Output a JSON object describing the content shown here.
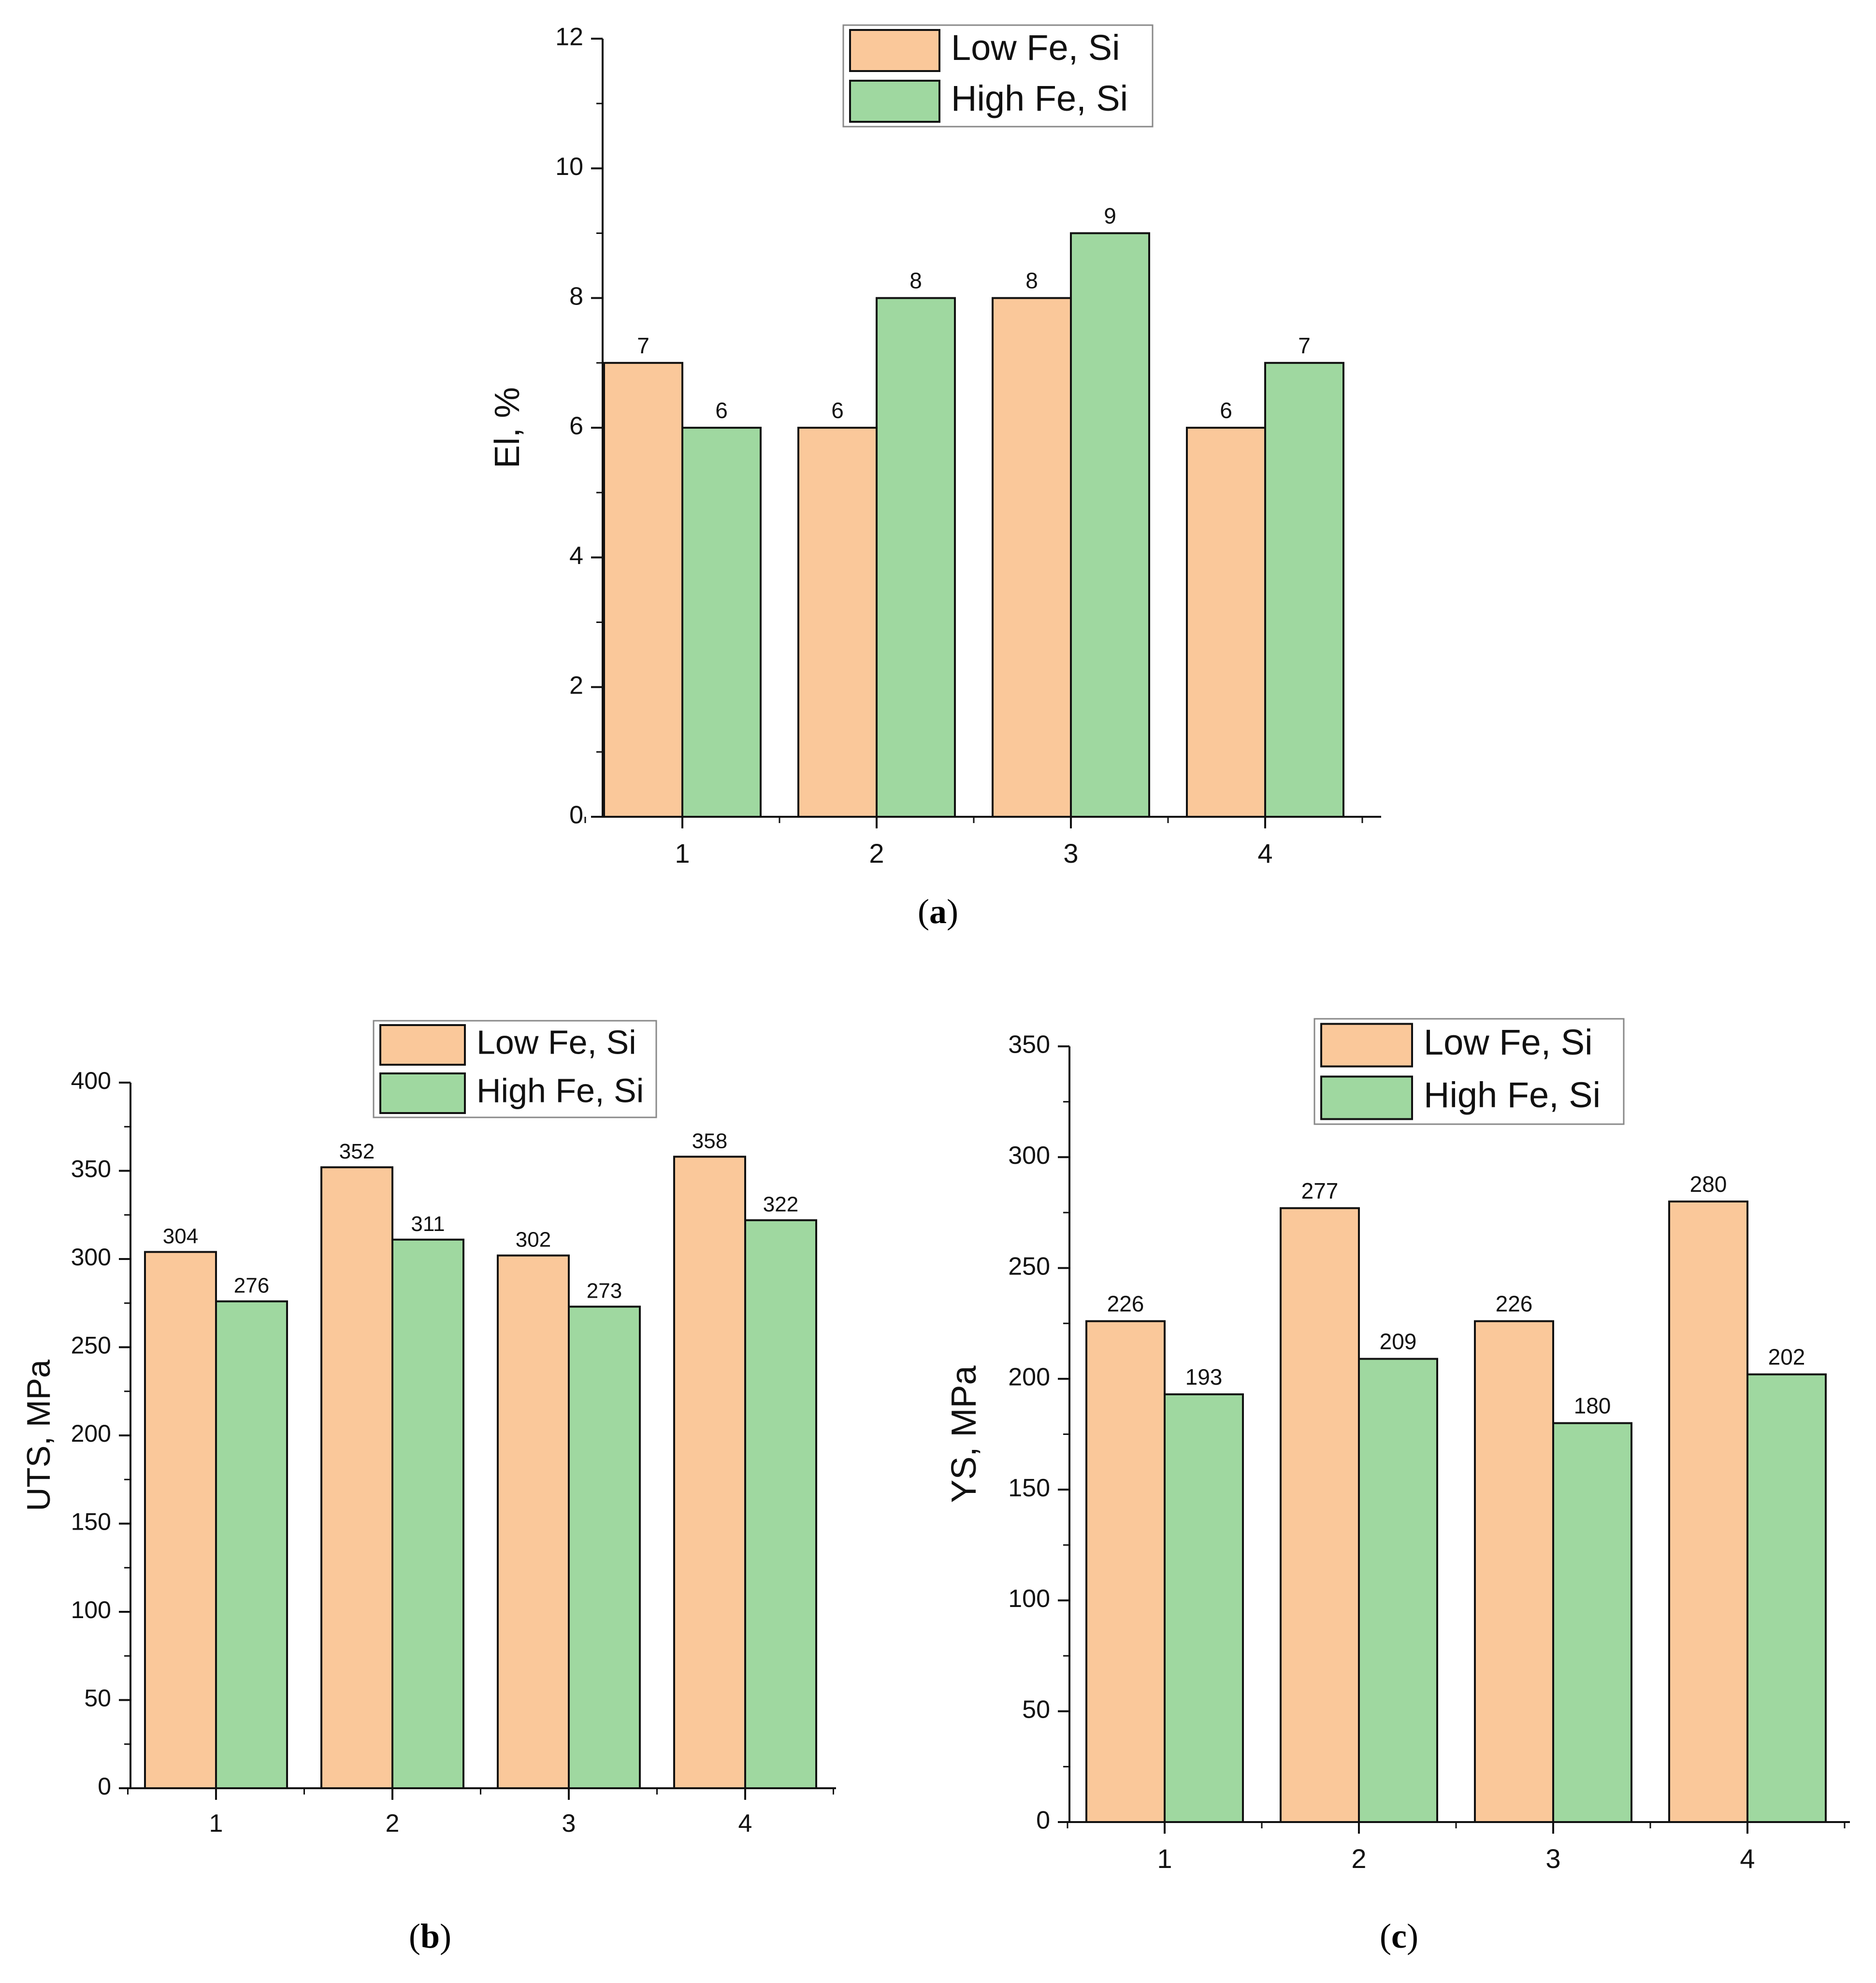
{
  "colors": {
    "low": "#fac89a",
    "high": "#9fd8a0",
    "stroke": "#111111"
  },
  "legend": {
    "low_label": "Low Fe, Si",
    "high_label": "High Fe, Si"
  },
  "captions": {
    "a": "a",
    "b": "b",
    "c": "c"
  },
  "chart_data": [
    {
      "id": "a",
      "type": "bar",
      "title": "",
      "xlabel": "",
      "ylabel": "El, %",
      "categories": [
        "1",
        "2",
        "3",
        "4"
      ],
      "ylim": [
        0,
        12
      ],
      "yticks": [
        0,
        2,
        4,
        6,
        8,
        10,
        12
      ],
      "grid": false,
      "legend_position": "top-center",
      "series": [
        {
          "name": "Low Fe, Si",
          "values": [
            7,
            6,
            8,
            6
          ]
        },
        {
          "name": "High Fe, Si",
          "values": [
            6,
            8,
            9,
            7
          ]
        }
      ]
    },
    {
      "id": "b",
      "type": "bar",
      "title": "",
      "xlabel": "",
      "ylabel": "UTS, MPa",
      "categories": [
        "1",
        "2",
        "3",
        "4"
      ],
      "ylim": [
        0,
        400
      ],
      "yticks": [
        0,
        50,
        100,
        150,
        200,
        250,
        300,
        350,
        400
      ],
      "grid": false,
      "legend_position": "top-right",
      "series": [
        {
          "name": "Low Fe, Si",
          "values": [
            304,
            352,
            302,
            358
          ]
        },
        {
          "name": "High Fe, Si",
          "values": [
            276,
            311,
            273,
            322
          ]
        }
      ]
    },
    {
      "id": "c",
      "type": "bar",
      "title": "",
      "xlabel": "",
      "ylabel": "YS, MPa",
      "categories": [
        "1",
        "2",
        "3",
        "4"
      ],
      "ylim": [
        0,
        350
      ],
      "yticks": [
        0,
        50,
        100,
        150,
        200,
        250,
        300,
        350
      ],
      "grid": false,
      "legend_position": "top-right",
      "series": [
        {
          "name": "Low Fe, Si",
          "values": [
            226,
            277,
            226,
            280
          ]
        },
        {
          "name": "High Fe, Si",
          "values": [
            193,
            209,
            180,
            202
          ]
        }
      ]
    }
  ]
}
